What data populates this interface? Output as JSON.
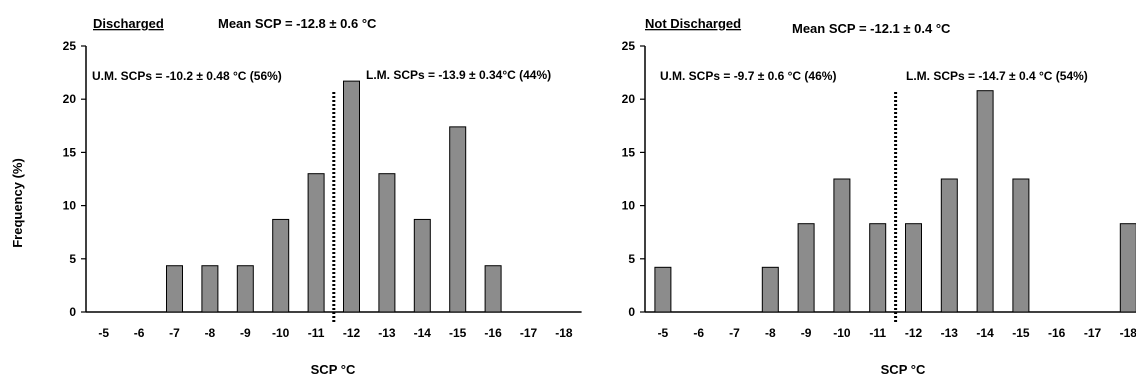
{
  "shared": {
    "ylabel": "Frequency (%)",
    "xlabel": "SCP °C"
  },
  "colors": {
    "bar_fill": "#8c8c8c",
    "bar_stroke": "#000000",
    "axis": "#000000"
  },
  "chart_data": [
    {
      "type": "bar",
      "title": "Discharged",
      "mean_label": "Mean SCP = -12.8 ± 0.6 °C",
      "um_label": "U.M. SCPs = -10.2  ± 0.48 °C (56%)",
      "lm_label": "L.M. SCPs = -13.9 ± 0.34°C (44%)",
      "xlabel": "SCP °C",
      "ylabel": "Frequency (%)",
      "categories": [
        "-5",
        "-6",
        "-7",
        "-8",
        "-9",
        "-10",
        "-11",
        "-12",
        "-13",
        "-14",
        "-15",
        "-16",
        "-17",
        "-18"
      ],
      "values": [
        0,
        0,
        4.35,
        4.35,
        4.35,
        8.7,
        13.0,
        21.7,
        13.0,
        8.7,
        17.4,
        4.35,
        0,
        0
      ],
      "ylim": [
        0,
        25
      ],
      "yticks": [
        0,
        5,
        10,
        15,
        20,
        25
      ],
      "divider_between": [
        6,
        7
      ],
      "grid": false
    },
    {
      "type": "bar",
      "title": "Not Discharged",
      "mean_label": "Mean SCP = -12.1 ± 0.4 °C",
      "um_label": "U.M. SCPs = -9.7 ± 0.6 °C (46%)",
      "lm_label": "L.M. SCPs = -14.7 ± 0.4 °C (54%)",
      "xlabel": "SCP °C",
      "ylabel": "",
      "categories": [
        "-5",
        "-6",
        "-7",
        "-8",
        "-9",
        "-10",
        "-11",
        "-12",
        "-13",
        "-14",
        "-15",
        "-16",
        "-17",
        "-18"
      ],
      "values": [
        4.2,
        0,
        0,
        4.2,
        8.3,
        12.5,
        8.3,
        8.3,
        12.5,
        20.8,
        12.5,
        0,
        0,
        8.3
      ],
      "ylim": [
        0,
        25
      ],
      "yticks": [
        0,
        5,
        10,
        15,
        20,
        25
      ],
      "divider_between": [
        6,
        7
      ],
      "grid": false
    }
  ]
}
